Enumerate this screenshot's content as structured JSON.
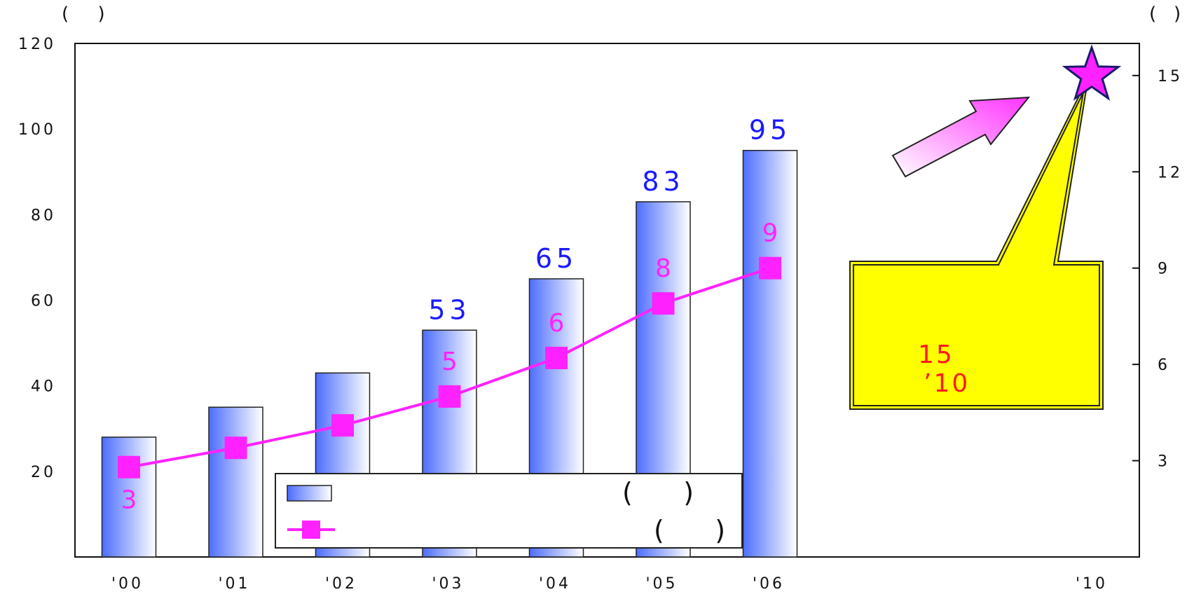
{
  "chart_data": {
    "type": "bar",
    "categories": [
      "'00",
      "'01",
      "'02",
      "'03",
      "'04",
      "'05",
      "'06"
    ],
    "future_category": "'10",
    "series": [
      {
        "axis": "left",
        "values": [
          28,
          35,
          43,
          53,
          65,
          83,
          95
        ],
        "data_labels": [
          "",
          "",
          "",
          "53",
          "65",
          "83",
          "95"
        ],
        "color": "#4d6dff"
      },
      {
        "axis": "right",
        "type": "line",
        "values": [
          2.8,
          3.4,
          4.1,
          5.0,
          6.2,
          7.9,
          9.0
        ],
        "data_labels": [
          "3",
          "",
          "",
          "5",
          "6",
          "8",
          "9"
        ],
        "color": "#ff22ff"
      }
    ],
    "target": {
      "category": "'10",
      "value": 15,
      "axis": "right",
      "marker": "star",
      "color": "#ff22ff"
    },
    "y_left": {
      "lim": [
        0,
        120
      ],
      "ticks": [
        20,
        40,
        60,
        80,
        100,
        120
      ],
      "unit_label": "(     )"
    },
    "y_right": {
      "lim": [
        0,
        16
      ],
      "ticks": [
        3,
        6,
        9,
        12,
        15
      ],
      "unit_label": "(   )"
    },
    "legend": {
      "position": "bottom-center",
      "entries": [
        {
          "marker": "bar",
          "suffix": "(      )"
        },
        {
          "marker": "line",
          "suffix": "(      )"
        }
      ]
    },
    "callout": {
      "line1": "15",
      "line2": "’10",
      "fill": "#ffff00"
    },
    "grid": false
  }
}
